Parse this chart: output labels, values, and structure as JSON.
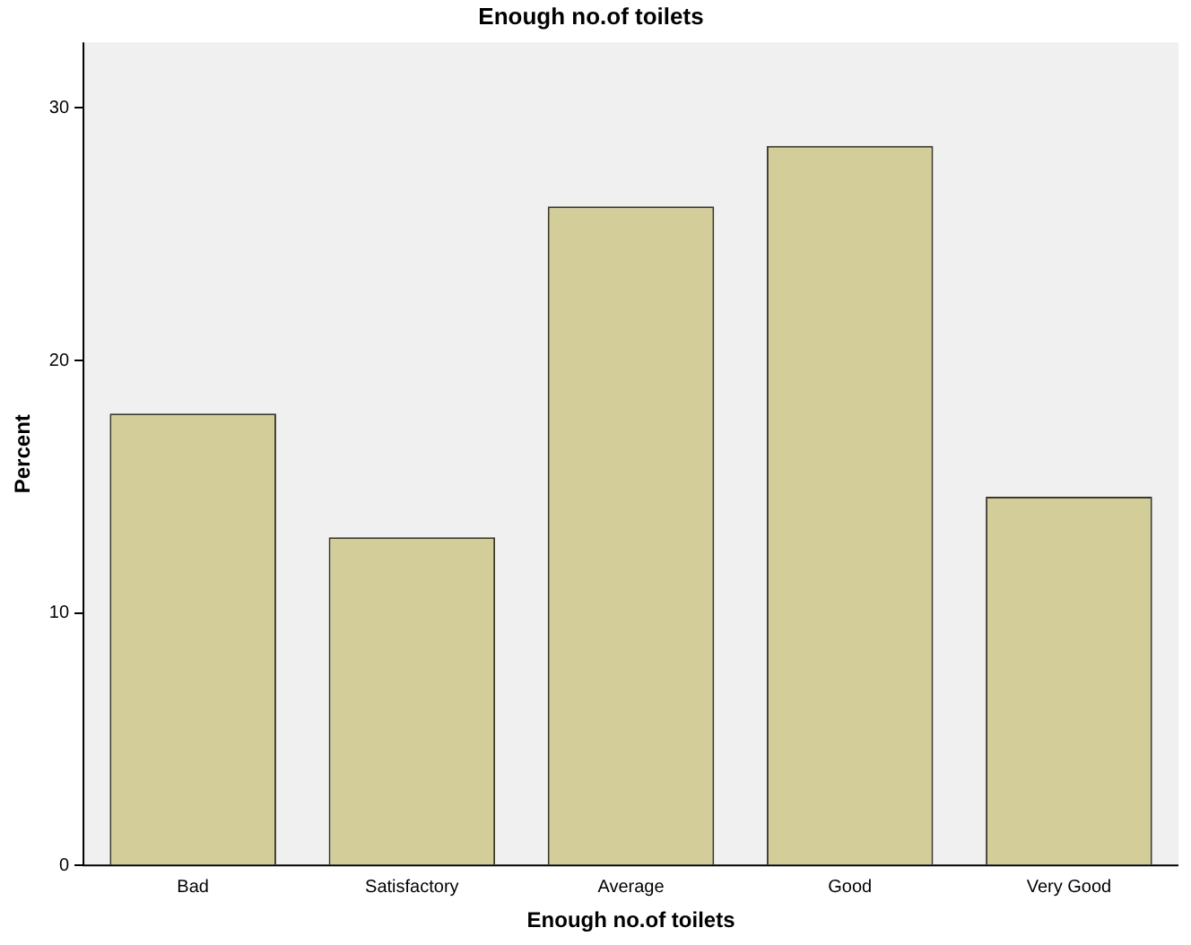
{
  "chart_data": {
    "type": "bar",
    "title": "Enough no.of toilets",
    "xlabel": "Enough no.of toilets",
    "ylabel": "Percent",
    "categories": [
      "Bad",
      "Satisfactory",
      "Average",
      "Good",
      "Very Good"
    ],
    "values": [
      17.9,
      13.0,
      26.1,
      28.5,
      14.6
    ],
    "color": "#d3ce99",
    "ylim": [
      0,
      32.6
    ],
    "yticks": [
      0,
      10,
      20,
      30
    ],
    "grid": false,
    "legend": false
  }
}
